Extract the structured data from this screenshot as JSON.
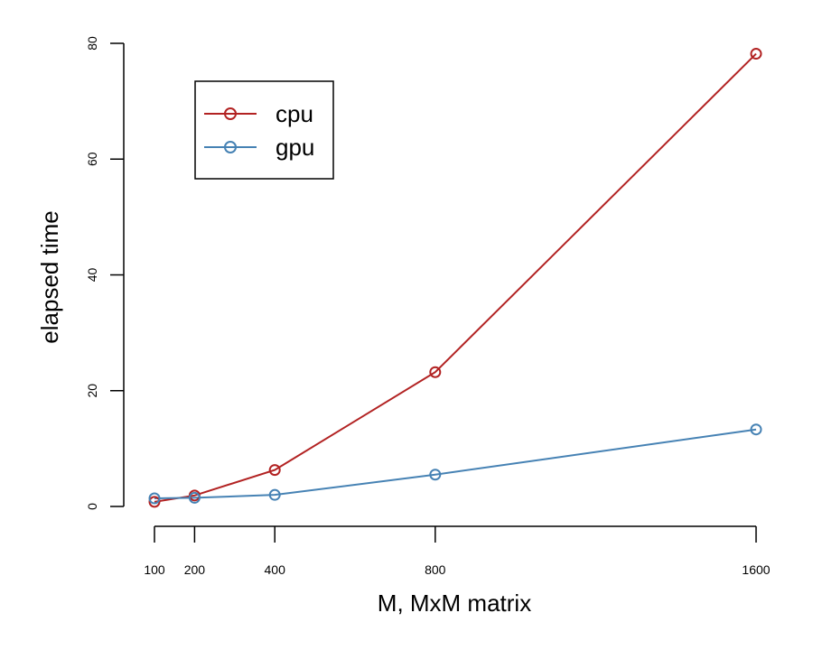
{
  "chart_data": {
    "type": "line",
    "xlabel": "M, MxM matrix",
    "ylabel": "elapsed time",
    "x": [
      100,
      200,
      400,
      800,
      1600
    ],
    "x_ticks": [
      100,
      200,
      400,
      800,
      1600
    ],
    "y_ticks": [
      0,
      20,
      40,
      60,
      80
    ],
    "xlim": [
      100,
      1600
    ],
    "ylim": [
      0,
      80
    ],
    "grid": false,
    "legend": {
      "position": "top-left",
      "entries": [
        "cpu",
        "gpu"
      ]
    },
    "series": [
      {
        "name": "cpu",
        "color": "#b22222",
        "values": [
          0.8,
          1.9,
          6.3,
          23.2,
          78.2
        ]
      },
      {
        "name": "gpu",
        "color": "#4682b4",
        "values": [
          1.4,
          1.5,
          2.0,
          5.5,
          13.3
        ]
      }
    ]
  }
}
